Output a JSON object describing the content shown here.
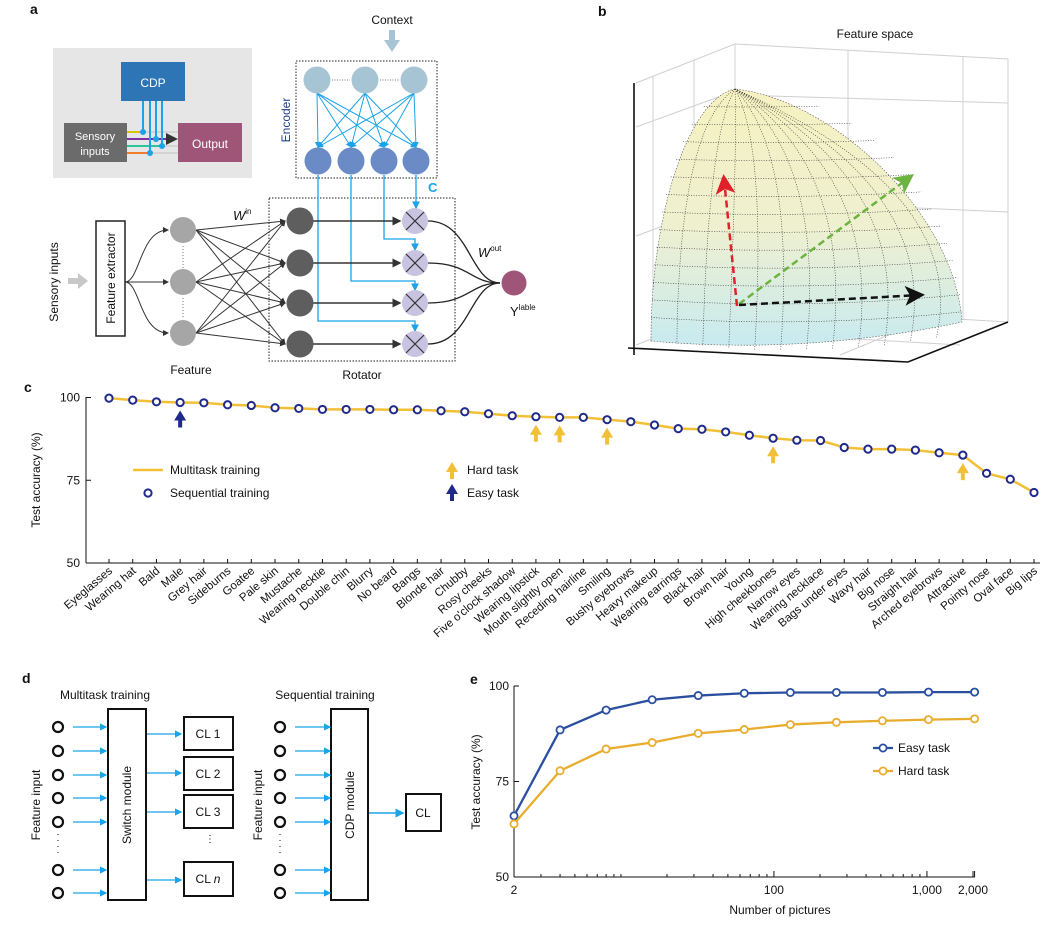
{
  "panels": {
    "a": {
      "label": "a",
      "inset": {
        "cdp": "CDP",
        "sensory_line1": "Sensory",
        "sensory_line2": "inputs",
        "output": "Output"
      },
      "context": "Context",
      "encoder": "Encoder",
      "c_label": "C",
      "w_in": "W",
      "w_in_sup": "in",
      "w_out": "W",
      "w_out_sup": "out",
      "y_label": "Y",
      "y_label_sup": "lable",
      "sensory_inputs": "Sensory inputs",
      "feature_extractor": "Feature extractor",
      "feature": "Feature",
      "rotator": "Rotator",
      "colors": {
        "cdp": "#2e75b6",
        "output": "#9e5577",
        "sensory": "#6b6b6b",
        "encoder_top": "#a7c4d4",
        "encoder_bottom": "#6a8bc6",
        "connections": "#1aa3e8",
        "rotator_node": "#5e5e5e",
        "multiplier": "#c8c3e0",
        "feature_node": "#a6a6a6"
      }
    },
    "b": {
      "label": "b",
      "title": "Feature space",
      "colors": {
        "surface_top": "#f6f1c0",
        "surface_bottom": "#c8eaf0",
        "arrow_1": "#e0202a",
        "arrow_2": "#6cb33f",
        "arrow_3": "#111111"
      }
    },
    "d": {
      "label": "d",
      "multitask_title": "Multitask training",
      "sequential_title": "Sequential training",
      "feature_input": "Feature input",
      "switch_module": "Switch module",
      "cdp_module": "CDP module",
      "cl_boxes": [
        "CL 1",
        "CL 2",
        "CL 3"
      ],
      "cl_n_prefix": "CL ",
      "cl_n_italic": "n",
      "cl_single": "CL"
    }
  },
  "chart_data": [
    {
      "panel": "c",
      "type": "line",
      "ylabel": "Test accuracy (%)",
      "ylim": [
        50,
        100
      ],
      "yticks": [
        "100",
        "75",
        "50"
      ],
      "categories": [
        "Eyeglasses",
        "Wearing hat",
        "Bald",
        "Male",
        "Grey hair",
        "Sideburns",
        "Goatee",
        "Pale skin",
        "Mustache",
        "Wearing necktie",
        "Double chin",
        "Blurry",
        "No beard",
        "Bangs",
        "Blonde hair",
        "Chubby",
        "Rosy cheeks",
        "Five o'clock shadow",
        "Wearing lipstick",
        "Mouth slightly open",
        "Receding hairline",
        "Smiling",
        "Bushy eyebrows",
        "Heavy makeup",
        "Wearing earrings",
        "Black hair",
        "Brown hair",
        "Young",
        "High cheekbones",
        "Narrow eyes",
        "Wearing necklace",
        "Bags under eyes",
        "Wavy hair",
        "Big nose",
        "Straight hair",
        "Arched eyebrows",
        "Attractive",
        "Pointy nose",
        "Oval face",
        "Big lips"
      ],
      "series": [
        {
          "name": "Multitask training",
          "style": "line",
          "color": "#f2c037",
          "values": [
            99.8,
            99.2,
            98.7,
            98.5,
            98.4,
            97.8,
            97.6,
            96.9,
            96.7,
            96.4,
            96.4,
            96.4,
            96.3,
            96.3,
            96.0,
            95.7,
            95.1,
            94.5,
            94.2,
            94.0,
            94.0,
            93.3,
            92.7,
            91.7,
            90.6,
            90.4,
            89.6,
            88.6,
            87.7,
            87.1,
            87.0,
            84.9,
            84.4,
            84.4,
            84.1,
            83.3,
            82.6,
            77.1,
            75.3,
            71.3
          ]
        },
        {
          "name": "Sequential training",
          "style": "open-circle",
          "color": "#1f2a8a",
          "values": [
            99.8,
            99.2,
            98.7,
            98.5,
            98.4,
            97.8,
            97.6,
            96.9,
            96.7,
            96.4,
            96.4,
            96.4,
            96.3,
            96.3,
            96.0,
            95.7,
            95.1,
            94.5,
            94.2,
            94.0,
            94.0,
            93.3,
            92.7,
            91.7,
            90.6,
            90.4,
            89.6,
            88.6,
            87.7,
            87.1,
            87.0,
            84.9,
            84.4,
            84.4,
            84.1,
            83.3,
            82.6,
            77.1,
            75.3,
            71.3
          ]
        }
      ],
      "markers": [
        {
          "name": "Hard task",
          "color": "#f2c037",
          "categories": [
            "Wearing lipstick",
            "Mouth slightly open",
            "Smiling",
            "High cheekbones",
            "Attractive"
          ]
        },
        {
          "name": "Easy task",
          "color": "#1f2a8a",
          "categories": [
            "Male"
          ]
        }
      ],
      "legend": "upper-left inside"
    },
    {
      "panel": "e",
      "type": "line",
      "xlabel": "Number of pictures",
      "ylabel": "Test accuracy (%)",
      "xscale": "log",
      "xlim": [
        2,
        2048
      ],
      "ylim": [
        50,
        100
      ],
      "xticks": [
        {
          "value": 2,
          "label": "2"
        },
        {
          "value": 100,
          "label": "100"
        },
        {
          "value": 1000,
          "label": "1,000"
        },
        {
          "value": 2000,
          "label": "2,000"
        }
      ],
      "yticks": [
        "100",
        "75",
        "50"
      ],
      "x": [
        2,
        4,
        8,
        16,
        32,
        64,
        128,
        256,
        512,
        1024,
        2048
      ],
      "series": [
        {
          "name": "Easy task",
          "color": "#2a4fa0",
          "values": [
            66.0,
            88.5,
            93.7,
            96.4,
            97.5,
            98.1,
            98.3,
            98.3,
            98.3,
            98.4,
            98.4
          ]
        },
        {
          "name": "Hard task",
          "color": "#e8ad2e",
          "values": [
            63.9,
            77.8,
            83.5,
            85.2,
            87.6,
            88.6,
            89.9,
            90.5,
            90.9,
            91.2,
            91.4
          ]
        }
      ],
      "legend": "right"
    }
  ]
}
